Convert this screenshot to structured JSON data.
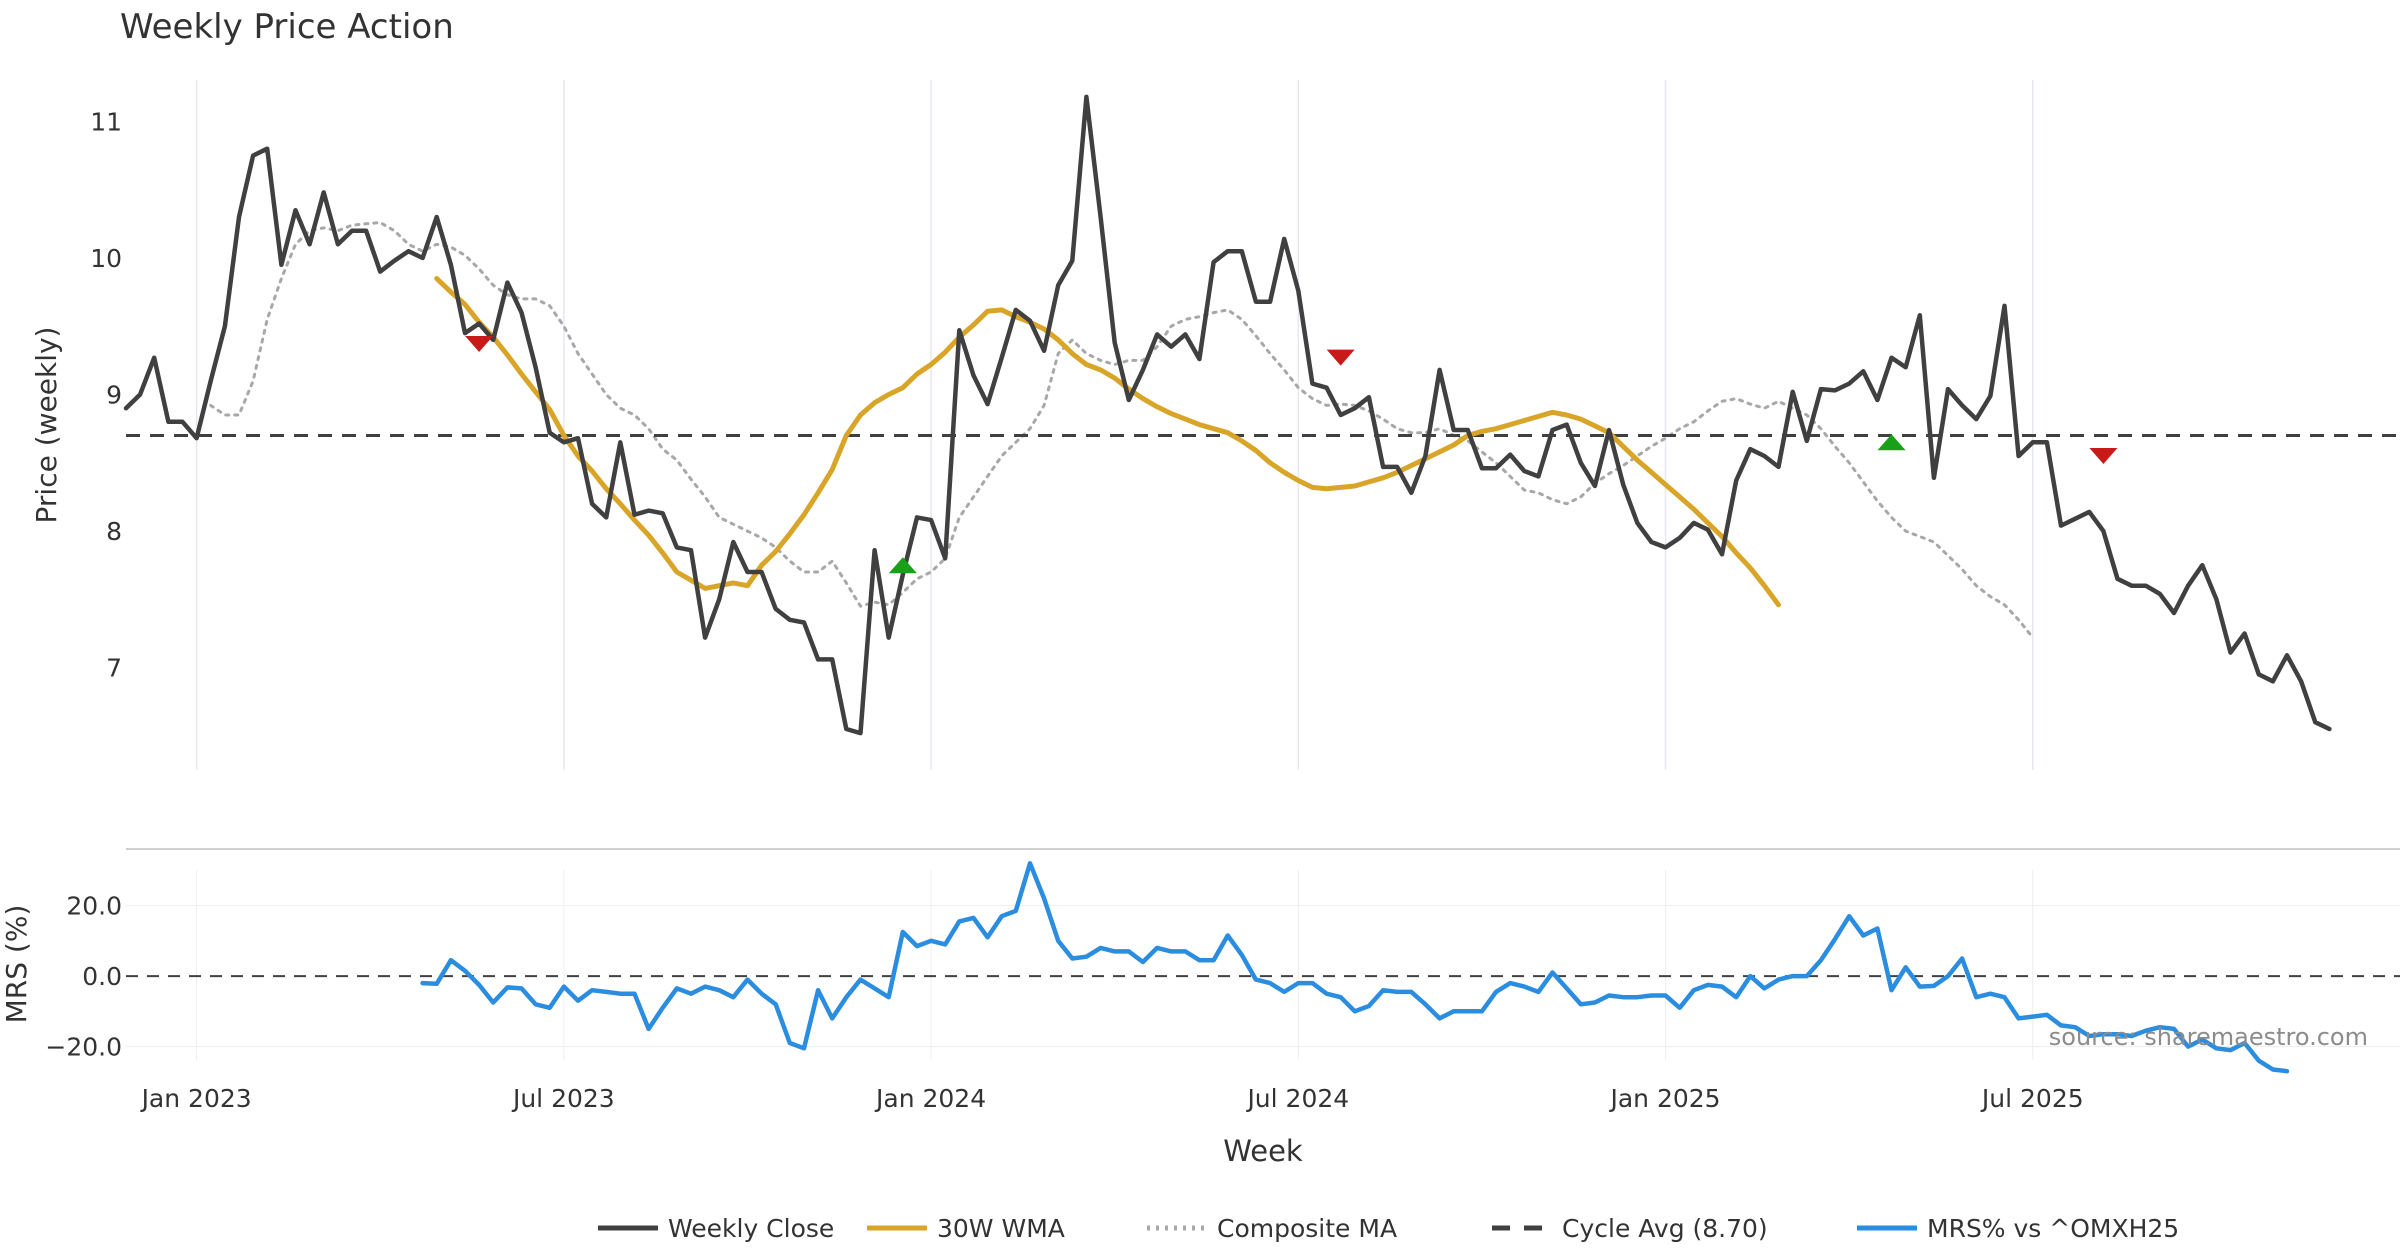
{
  "chart_data": [
    {
      "type": "line",
      "title": "Weekly Price Action",
      "ylabel": "Price (weekly)",
      "xlabel": "",
      "x_start": "2022-11-28",
      "x_end": "2025-12-29",
      "ylim": [
        6.25,
        11.45
      ],
      "yticks": [
        7,
        8,
        9,
        10,
        11
      ],
      "grid": "vertical",
      "series": [
        {
          "name": "Weekly Close",
          "color": "#404040",
          "style": "solid",
          "start": "2022-11-28",
          "values": [
            8.9,
            9.0,
            9.27,
            8.8,
            8.8,
            8.68,
            9.1,
            9.5,
            10.3,
            10.75,
            10.8,
            9.95,
            10.35,
            10.1,
            10.48,
            10.1,
            10.2,
            10.2,
            9.9,
            9.98,
            10.05,
            10.0,
            10.3,
            9.95,
            9.45,
            9.52,
            9.4,
            9.82,
            9.6,
            9.2,
            8.72,
            8.65,
            8.68,
            8.2,
            8.1,
            8.65,
            8.12,
            8.15,
            8.13,
            7.88,
            7.86,
            7.22,
            7.5,
            7.92,
            7.7,
            7.7,
            7.43,
            7.35,
            7.33,
            7.06,
            7.06,
            6.55,
            6.52,
            7.86,
            7.22,
            7.68,
            8.1,
            8.08,
            7.8,
            9.47,
            9.14,
            8.93,
            9.27,
            9.62,
            9.54,
            9.32,
            9.8,
            9.98,
            11.18,
            10.3,
            9.38,
            8.96,
            9.18,
            9.44,
            9.35,
            9.44,
            9.26,
            9.97,
            10.05,
            10.05,
            9.68,
            9.68,
            10.14,
            9.76,
            9.08,
            9.05,
            8.85,
            8.9,
            8.98,
            8.47,
            8.47,
            8.28,
            8.55,
            9.18,
            8.74,
            8.74,
            8.46,
            8.46,
            8.56,
            8.44,
            8.4,
            8.74,
            8.78,
            8.5,
            8.33,
            8.74,
            8.34,
            8.06,
            7.92,
            7.88,
            7.95,
            8.06,
            8.01,
            7.83,
            8.37,
            8.6,
            8.55,
            8.47,
            9.02,
            8.66,
            9.04,
            9.03,
            9.08,
            9.17,
            8.96,
            9.27,
            9.2,
            9.58,
            8.39,
            9.04,
            8.92,
            8.82,
            8.99,
            9.65,
            8.55,
            8.65,
            8.65,
            8.04,
            8.09,
            8.14,
            8.0,
            7.65,
            7.6,
            7.6,
            7.54,
            7.4,
            7.6,
            7.75,
            7.5,
            7.11,
            7.25,
            6.95,
            6.9,
            7.09,
            6.9,
            6.6,
            6.55
          ]
        },
        {
          "name": "30W WMA",
          "color": "#d9a528",
          "style": "solid",
          "start": "2023-05-01",
          "values": [
            9.85,
            9.75,
            9.66,
            9.53,
            9.42,
            9.29,
            9.15,
            9.02,
            8.89,
            8.7,
            8.55,
            8.44,
            8.31,
            8.2,
            8.08,
            7.97,
            7.84,
            7.7,
            7.64,
            7.58,
            7.6,
            7.62,
            7.6,
            7.75,
            7.85,
            7.98,
            8.12,
            8.28,
            8.45,
            8.7,
            8.85,
            8.94,
            9.0,
            9.05,
            9.15,
            9.22,
            9.31,
            9.42,
            9.51,
            9.61,
            9.62,
            9.57,
            9.53,
            9.48,
            9.4,
            9.3,
            9.22,
            9.18,
            9.12,
            9.04,
            8.97,
            8.91,
            8.86,
            8.82,
            8.78,
            8.75,
            8.72,
            8.66,
            8.59,
            8.5,
            8.43,
            8.37,
            8.32,
            8.31,
            8.32,
            8.33,
            8.36,
            8.39,
            8.43,
            8.48,
            8.53,
            8.58,
            8.63,
            8.7,
            8.73,
            8.75,
            8.78,
            8.81,
            8.84,
            8.87,
            8.85,
            8.82,
            8.77,
            8.72,
            8.62,
            8.52,
            8.43,
            8.34,
            8.25,
            8.16,
            8.06,
            7.96,
            7.84,
            7.73,
            7.6,
            7.46
          ]
        },
        {
          "name": "Composite MA",
          "color": "#a8a8a8",
          "style": "dotted",
          "start": "2023-01-09",
          "values": [
            8.92,
            8.85,
            8.85,
            9.1,
            9.55,
            9.85,
            10.1,
            10.2,
            10.22,
            10.2,
            10.24,
            10.25,
            10.26,
            10.2,
            10.1,
            10.05,
            10.1,
            10.08,
            10.02,
            9.92,
            9.8,
            9.73,
            9.7,
            9.7,
            9.65,
            9.5,
            9.3,
            9.15,
            9.0,
            8.9,
            8.85,
            8.75,
            8.6,
            8.52,
            8.38,
            8.25,
            8.1,
            8.05,
            8.0,
            7.95,
            7.88,
            7.78,
            7.7,
            7.7,
            7.78,
            7.62,
            7.45,
            7.48,
            7.46,
            7.55,
            7.65,
            7.7,
            7.8,
            8.1,
            8.25,
            8.4,
            8.55,
            8.65,
            8.75,
            8.92,
            9.3,
            9.4,
            9.3,
            9.25,
            9.22,
            9.25,
            9.25,
            9.35,
            9.5,
            9.55,
            9.57,
            9.6,
            9.62,
            9.55,
            9.43,
            9.3,
            9.18,
            9.05,
            8.97,
            8.92,
            8.93,
            8.92,
            8.88,
            8.82,
            8.75,
            8.72,
            8.72,
            8.75,
            8.7,
            8.66,
            8.58,
            8.5,
            8.4,
            8.3,
            8.28,
            8.23,
            8.2,
            8.25,
            8.35,
            8.42,
            8.48,
            8.55,
            8.62,
            8.68,
            8.75,
            8.8,
            8.88,
            8.95,
            8.97,
            8.93,
            8.9,
            8.95,
            8.9,
            8.85,
            8.75,
            8.62,
            8.5,
            8.36,
            8.22,
            8.1,
            8.0,
            7.96,
            7.92,
            7.82,
            7.72,
            7.6,
            7.52,
            7.46,
            7.35,
            7.22
          ]
        },
        {
          "name": "Cycle Avg (8.70)",
          "color": "#404040",
          "style": "dashed",
          "constant": 8.7
        }
      ],
      "markers": [
        {
          "type": "sell",
          "date": "2023-05-22",
          "y": 9.37,
          "color": "#c91a1a"
        },
        {
          "type": "buy",
          "date": "2023-12-18",
          "y": 7.75,
          "color": "#19a019"
        },
        {
          "type": "sell",
          "date": "2024-07-22",
          "y": 9.27,
          "color": "#c91a1a"
        },
        {
          "type": "buy",
          "date": "2025-04-21",
          "y": 8.65,
          "color": "#19a019"
        },
        {
          "type": "sell",
          "date": "2025-08-04",
          "y": 8.55,
          "color": "#c91a1a"
        }
      ]
    },
    {
      "type": "line",
      "title": "",
      "ylabel": "MRS (%)",
      "xlabel": "Week",
      "ylim": [
        -27.5,
        33.5
      ],
      "yticks": [
        20.0,
        0.0,
        -20.0
      ],
      "ytick_labels": [
        "20.0",
        "0.0",
        "−20.0"
      ],
      "zero_line": 0.0,
      "annotation": "source: sharemaestro.com",
      "xticks": [
        {
          "label": "Jan 2023",
          "date": "2023-01-02"
        },
        {
          "label": "Jul 2023",
          "date": "2023-07-03"
        },
        {
          "label": "Jan 2024",
          "date": "2024-01-01"
        },
        {
          "label": "Jul 2024",
          "date": "2024-07-01"
        },
        {
          "label": "Jan 2025",
          "date": "2024-12-30"
        },
        {
          "label": "Jul 2025",
          "date": "2025-06-30"
        }
      ],
      "series": [
        {
          "name": "MRS% vs ^OMXH25",
          "color": "#2b8de0",
          "style": "solid",
          "start": "2023-04-24",
          "values": [
            -2.0,
            -2.2,
            4.5,
            1.5,
            -2.5,
            -7.5,
            -3.2,
            -3.5,
            -8.0,
            -9.0,
            -3.0,
            -7.0,
            -4.0,
            -4.5,
            -5.0,
            -5.0,
            -15.0,
            -9.0,
            -3.5,
            -5.0,
            -3.0,
            -4.0,
            -6.0,
            -1.0,
            -5.0,
            -8.0,
            -19.0,
            -20.5,
            -4.0,
            -12.0,
            -6.0,
            -1.0,
            -3.5,
            -6.0,
            12.5,
            8.5,
            10.0,
            9.0,
            15.5,
            16.5,
            11.0,
            17.0,
            18.5,
            32.0,
            22.0,
            10.0,
            5.0,
            5.5,
            8.0,
            7.0,
            7.0,
            4.0,
            8.0,
            7.0,
            7.0,
            4.5,
            4.5,
            11.5,
            6.0,
            -1.0,
            -2.0,
            -4.5,
            -2.0,
            -2.0,
            -5.0,
            -6.0,
            -10.0,
            -8.5,
            -4.0,
            -4.5,
            -4.5,
            -8.0,
            -12.0,
            -10.0,
            -10.0,
            -10.0,
            -4.5,
            -2.0,
            -3.0,
            -4.5,
            1.0,
            -3.5,
            -8.0,
            -7.5,
            -5.5,
            -6.0,
            -6.0,
            -5.5,
            -5.5,
            -9.0,
            -4.0,
            -2.5,
            -3.0,
            -6.0,
            0.0,
            -3.5,
            -1.0,
            0.0,
            0.0,
            4.5,
            10.5,
            17.0,
            11.5,
            13.5,
            -4.0,
            2.5,
            -3.0,
            -2.8,
            0.0,
            5.0,
            -6.0,
            -5.0,
            -6.0,
            -12.0,
            -11.5,
            -11.0,
            -14.0,
            -14.5,
            -17.0,
            -16.5,
            -16.5,
            -17.0,
            -15.5,
            -14.5,
            -15.0,
            -20.0,
            -18.0,
            -20.5,
            -21.0,
            -19.0,
            -24.0,
            -26.5,
            -27.0
          ]
        }
      ]
    }
  ],
  "legend": {
    "position": "bottom-center",
    "items": [
      {
        "label": "Weekly Close",
        "color": "#404040",
        "style": "solid"
      },
      {
        "label": "30W WMA",
        "color": "#d9a528",
        "style": "solid"
      },
      {
        "label": "Composite MA",
        "color": "#a8a8a8",
        "style": "dotted"
      },
      {
        "label": "Cycle Avg (8.70)",
        "color": "#404040",
        "style": "dashed"
      },
      {
        "label": "MRS% vs ^OMXH25",
        "color": "#2b8de0",
        "style": "solid"
      }
    ]
  }
}
